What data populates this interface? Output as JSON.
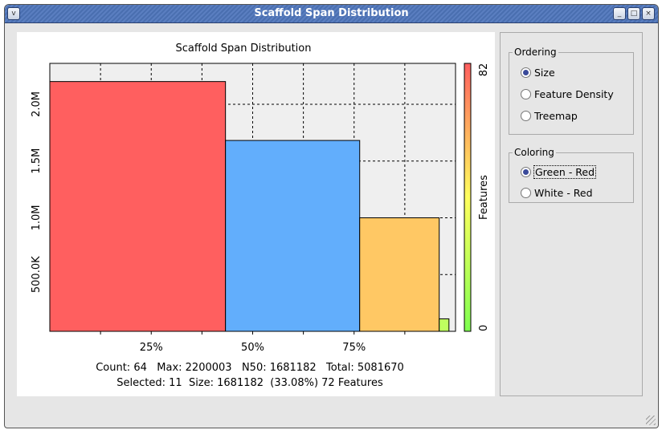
{
  "window": {
    "title": "Scaffold Span Distribution"
  },
  "ordering": {
    "label": "Ordering",
    "options": [
      "Size",
      "Feature Density",
      "Treemap"
    ],
    "selected": "Size"
  },
  "coloring": {
    "label": "Coloring",
    "options": [
      "Green - Red",
      "White - Red"
    ],
    "selected": "Green - Red"
  },
  "stats": {
    "line1": "Count: 64   Max: 2200003   N50: 1681182   Total: 5081670",
    "line2": "Selected: 11  Size: 1681182  (33.08%) 72 Features"
  },
  "chart_data": {
    "type": "bar",
    "title": "Scaffold Span Distribution",
    "xlabel": "",
    "ylabel": "",
    "xlim": [
      0,
      100
    ],
    "ylim": [
      0,
      2360000
    ],
    "xticks": [
      "25%",
      "50%",
      "75%"
    ],
    "yticks": [
      "500.0K",
      "1.0M",
      "1.5M",
      "2.0M"
    ],
    "bars": [
      {
        "start_pct": 0,
        "width_pct": 43.3,
        "value": 2200003,
        "color": "#ff5f5f"
      },
      {
        "start_pct": 43.3,
        "width_pct": 33.08,
        "value": 1681182,
        "color": "#62aefc"
      },
      {
        "start_pct": 76.38,
        "width_pct": 19.6,
        "value": 1000000,
        "color": "#ffc864"
      },
      {
        "start_pct": 95.98,
        "width_pct": 2.4,
        "value": 110000,
        "color": "#bfff5f"
      }
    ],
    "colorbar": {
      "label": "Features",
      "min": "0",
      "max": "82",
      "colors": [
        "#7fff50",
        "#ffff5f",
        "#ff5f5f"
      ]
    }
  }
}
